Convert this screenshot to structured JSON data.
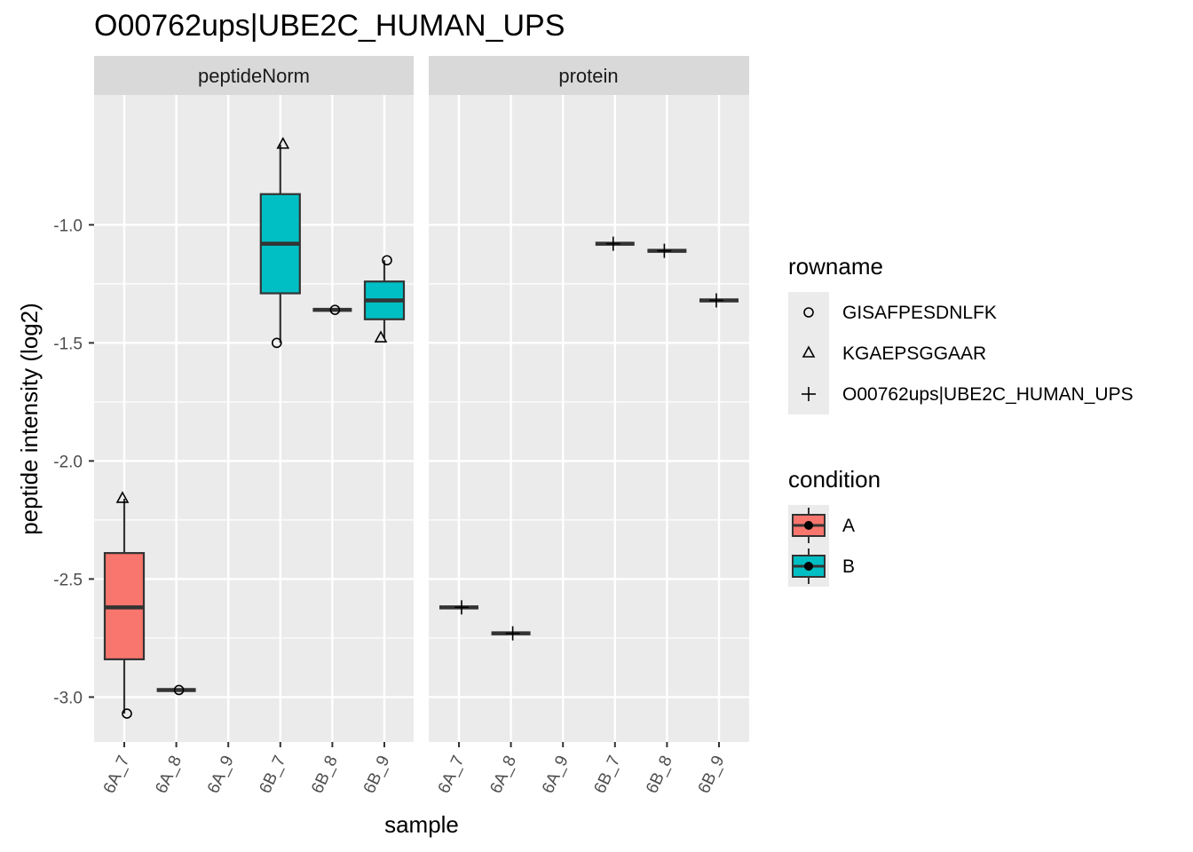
{
  "title": "O00762ups|UBE2C_HUMAN_UPS",
  "chart_data": {
    "type": "boxplot",
    "facets": [
      "peptideNorm",
      "protein"
    ],
    "x_axis": {
      "label": "sample",
      "categories": [
        "6A_7",
        "6A_8",
        "6A_9",
        "6B_7",
        "6B_8",
        "6B_9"
      ]
    },
    "y_axis": {
      "label": "peptide intensity (log2)",
      "ticks": [
        "-1.0",
        "-1.5",
        "-2.0",
        "-2.5",
        "-3.0"
      ],
      "tick_values": [
        -1.0,
        -1.5,
        -2.0,
        -2.5,
        -3.0
      ],
      "range": [
        -3.19,
        -0.45
      ]
    },
    "grid": true,
    "boxes": [
      {
        "facet": "peptideNorm",
        "sample": "6A_7",
        "condition": "A",
        "q1": -2.84,
        "median": -2.62,
        "q3": -2.39,
        "whisker_low": -3.07,
        "whisker_high": -2.16
      },
      {
        "facet": "peptideNorm",
        "sample": "6A_8",
        "condition": "A",
        "q1": -2.97,
        "median": -2.97,
        "q3": -2.97,
        "whisker_low": -2.97,
        "whisker_high": -2.97
      },
      {
        "facet": "peptideNorm",
        "sample": "6B_7",
        "condition": "B",
        "q1": -1.29,
        "median": -1.08,
        "q3": -0.87,
        "whisker_low": -1.5,
        "whisker_high": -0.66
      },
      {
        "facet": "peptideNorm",
        "sample": "6B_8",
        "condition": "B",
        "q1": -1.36,
        "median": -1.36,
        "q3": -1.36,
        "whisker_low": -1.36,
        "whisker_high": -1.36
      },
      {
        "facet": "peptideNorm",
        "sample": "6B_9",
        "condition": "B",
        "q1": -1.4,
        "median": -1.32,
        "q3": -1.24,
        "whisker_low": -1.48,
        "whisker_high": -1.15
      },
      {
        "facet": "protein",
        "sample": "6A_7",
        "condition": "A",
        "q1": -2.62,
        "median": -2.62,
        "q3": -2.62,
        "whisker_low": -2.62,
        "whisker_high": -2.62
      },
      {
        "facet": "protein",
        "sample": "6A_8",
        "condition": "A",
        "q1": -2.73,
        "median": -2.73,
        "q3": -2.73,
        "whisker_low": -2.73,
        "whisker_high": -2.73
      },
      {
        "facet": "protein",
        "sample": "6B_7",
        "condition": "B",
        "q1": -1.08,
        "median": -1.08,
        "q3": -1.08,
        "whisker_low": -1.08,
        "whisker_high": -1.08
      },
      {
        "facet": "protein",
        "sample": "6B_8",
        "condition": "B",
        "q1": -1.11,
        "median": -1.11,
        "q3": -1.11,
        "whisker_low": -1.11,
        "whisker_high": -1.11
      },
      {
        "facet": "protein",
        "sample": "6B_9",
        "condition": "B",
        "q1": -1.32,
        "median": -1.32,
        "q3": -1.32,
        "whisker_low": -1.32,
        "whisker_high": -1.32
      }
    ],
    "points": [
      {
        "facet": "peptideNorm",
        "sample": "6A_7",
        "rowname": "KGAEPSGGAAR",
        "y": -2.16
      },
      {
        "facet": "peptideNorm",
        "sample": "6A_7",
        "rowname": "GISAFPESDNLFK",
        "y": -3.07
      },
      {
        "facet": "peptideNorm",
        "sample": "6A_8",
        "rowname": "GISAFPESDNLFK",
        "y": -2.97
      },
      {
        "facet": "peptideNorm",
        "sample": "6B_7",
        "rowname": "KGAEPSGGAAR",
        "y": -0.66
      },
      {
        "facet": "peptideNorm",
        "sample": "6B_7",
        "rowname": "GISAFPESDNLFK",
        "y": -1.5
      },
      {
        "facet": "peptideNorm",
        "sample": "6B_8",
        "rowname": "GISAFPESDNLFK",
        "y": -1.36
      },
      {
        "facet": "peptideNorm",
        "sample": "6B_9",
        "rowname": "GISAFPESDNLFK",
        "y": -1.15
      },
      {
        "facet": "peptideNorm",
        "sample": "6B_9",
        "rowname": "KGAEPSGGAAR",
        "y": -1.48
      },
      {
        "facet": "protein",
        "sample": "6A_7",
        "rowname": "O00762ups|UBE2C_HUMAN_UPS",
        "y": -2.62
      },
      {
        "facet": "protein",
        "sample": "6A_8",
        "rowname": "O00762ups|UBE2C_HUMAN_UPS",
        "y": -2.73
      },
      {
        "facet": "protein",
        "sample": "6B_7",
        "rowname": "O00762ups|UBE2C_HUMAN_UPS",
        "y": -1.08
      },
      {
        "facet": "protein",
        "sample": "6B_8",
        "rowname": "O00762ups|UBE2C_HUMAN_UPS",
        "y": -1.11
      },
      {
        "facet": "protein",
        "sample": "6B_9",
        "rowname": "O00762ups|UBE2C_HUMAN_UPS",
        "y": -1.32
      }
    ],
    "legends": [
      {
        "title": "rowname",
        "entries": [
          {
            "label": "GISAFPESDNLFK",
            "shape": "circle"
          },
          {
            "label": "KGAEPSGGAAR",
            "shape": "triangle"
          },
          {
            "label": "O00762ups|UBE2C_HUMAN_UPS",
            "shape": "plus"
          }
        ]
      },
      {
        "title": "condition",
        "entries": [
          {
            "label": "A",
            "color": "#F8766D"
          },
          {
            "label": "B",
            "color": "#00BFC4"
          }
        ]
      }
    ],
    "colors": {
      "A": "#F8766D",
      "B": "#00BFC4",
      "panel_background": "#EBEBEB",
      "strip_background": "#D9D9D9",
      "grid": "#FFFFFF"
    }
  }
}
